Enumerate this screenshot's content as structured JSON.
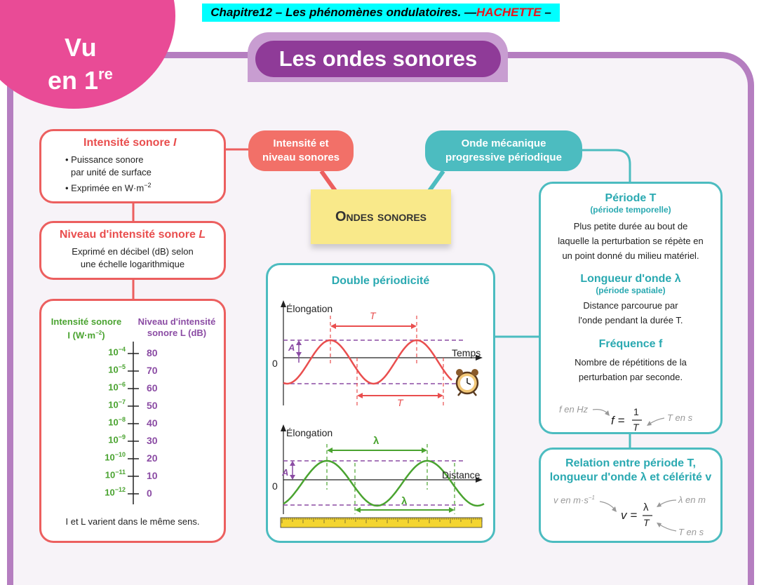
{
  "header": {
    "chapter": "Chapitre12 – Les phénomènes ondulatoires. —",
    "publisher": "HACHETTE",
    "dash": " –"
  },
  "badge": {
    "line1": "Vu",
    "line2": "en 1",
    "sup": "re"
  },
  "title": "Les ondes sonores",
  "center_label": "Ondes sonores",
  "pills": {
    "left": [
      "Intensité et",
      "niveau sonores"
    ],
    "right": [
      "Onde mécanique",
      "progressive périodique"
    ]
  },
  "intensity": {
    "title": "Intensité sonore",
    "symbol": "I",
    "bullets": [
      "• Puissance sonore",
      "par unité de surface",
      "• Exprimée en W·m",
      "−2"
    ]
  },
  "level": {
    "title": "Niveau d'intensité sonore",
    "symbol": "L",
    "text": [
      "Exprimé en décibel (dB) selon",
      "une échelle logarithmique"
    ]
  },
  "scale": {
    "col1": [
      "Intensité sonore",
      "I (W·m",
      "−2",
      ")"
    ],
    "col2": [
      "Niveau d'intensité",
      "sonore L (dB)"
    ],
    "intensities": [
      {
        "base": "10",
        "exp": "−4"
      },
      {
        "base": "10",
        "exp": "−5"
      },
      {
        "base": "10",
        "exp": "−6"
      },
      {
        "base": "10",
        "exp": "−7"
      },
      {
        "base": "10",
        "exp": "−8"
      },
      {
        "base": "10",
        "exp": "−9"
      },
      {
        "base": "10",
        "exp": "−10"
      },
      {
        "base": "10",
        "exp": "−11"
      },
      {
        "base": "10",
        "exp": "−12"
      }
    ],
    "levels": [
      "80",
      "70",
      "60",
      "50",
      "40",
      "30",
      "20",
      "10",
      "0"
    ],
    "note": "I et L varient dans le même sens."
  },
  "double": {
    "title": "Double périodicité",
    "g1": {
      "ylabel": "Élongation",
      "xlabel": "Temps",
      "A": "A",
      "T": "T",
      "zero": "0"
    },
    "g2": {
      "ylabel": "Élongation",
      "xlabel": "Distance",
      "A": "A",
      "lambda": "λ",
      "zero": "0"
    }
  },
  "right": {
    "period_title": "Période T",
    "period_sub": "(période temporelle)",
    "period_text": [
      "Plus petite durée au bout de",
      "laquelle la perturbation se répète en",
      "un point donné du milieu matériel."
    ],
    "wl_title": "Longueur d'onde λ",
    "wl_sub": "(période spatiale)",
    "wl_text": [
      "Distance parcourue par",
      "l'onde pendant la durée T."
    ],
    "freq_title": "Fréquence f",
    "freq_text": [
      "Nombre de répétitions de la",
      "perturbation par seconde."
    ],
    "f_unit": "f en Hz",
    "T_unit": "T en s",
    "f_eq": "f =",
    "one": "1",
    "T": "T"
  },
  "relation": {
    "title": [
      "Relation entre période T,",
      "longueur d'onde λ et célérité v"
    ],
    "v_unit": "v en m·s",
    "v_exp": "−1",
    "lambda_unit": "λ en m",
    "T_unit": "T en s",
    "v_eq": "v =",
    "lambda": "λ",
    "T": "T"
  },
  "colors": {
    "purple": "#8f3b98",
    "pink": "#e94b96",
    "red": "#ec5f5f",
    "teal": "#4cbcc0",
    "yellow": "#f9e98a",
    "green": "#4aa330",
    "violet": "#8b4ca4"
  }
}
